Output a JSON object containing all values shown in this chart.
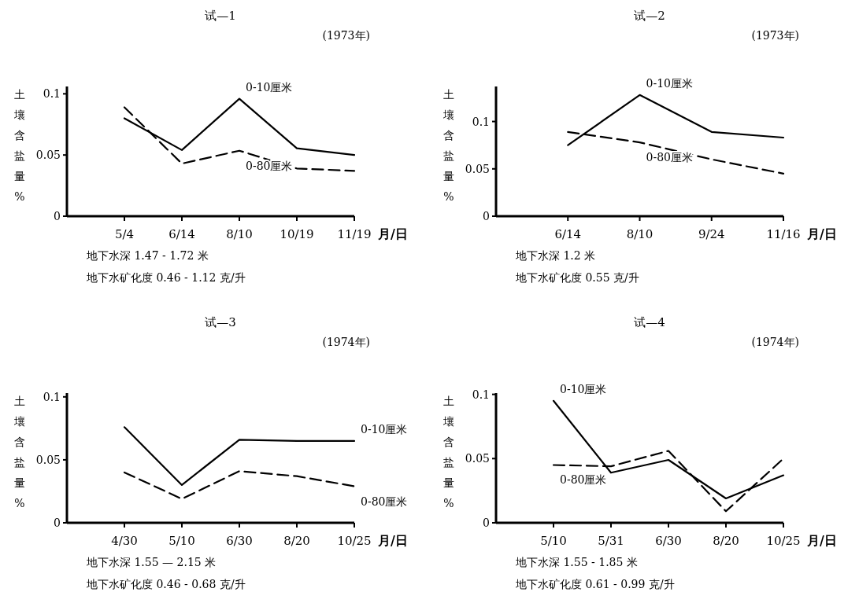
{
  "chart_data": [
    {
      "type": "line",
      "title": "试—1",
      "subtitle": "(1973年)",
      "ylabel": "土壤含盐量%",
      "xlabel": "月/日",
      "categories": [
        "5/4",
        "6/14",
        "8/10",
        "10/19",
        "11/19"
      ],
      "ylim": [
        0,
        0.106
      ],
      "yticks": [
        0,
        0.05,
        0.1
      ],
      "grid": false,
      "series": [
        {
          "name": "0-10厘米",
          "color": "#000000",
          "line_style": "solid",
          "values": [
            0.08,
            0.054,
            0.096,
            0.0555,
            0.05
          ]
        },
        {
          "name": "0-80厘米",
          "color": "#000000",
          "line_style": "dashed",
          "values": [
            0.089,
            0.043,
            0.0535,
            0.039,
            0.037
          ]
        }
      ],
      "annotations": [
        "地下水深 1.47 - 1.72 米",
        "地下水矿化度 0.46 - 1.12 克/升"
      ]
    },
    {
      "type": "line",
      "title": "试—2",
      "subtitle": "(1973年)",
      "ylabel": "土壤含盐量%",
      "xlabel": "月/日",
      "categories": [
        "6/14",
        "8/10",
        "9/24",
        "11/16"
      ],
      "ylim": [
        0,
        0.137
      ],
      "yticks": [
        0,
        0.05,
        0.1
      ],
      "grid": false,
      "series": [
        {
          "name": "0-10厘米",
          "color": "#000000",
          "line_style": "solid",
          "values": [
            0.075,
            0.128,
            0.089,
            0.083
          ]
        },
        {
          "name": "0-80厘米",
          "color": "#000000",
          "line_style": "dashed",
          "values": [
            0.089,
            0.078,
            0.06,
            0.045
          ]
        }
      ],
      "annotations": [
        "地下水深 1.2 米",
        "地下水矿化度 0.55 克/升"
      ]
    },
    {
      "type": "line",
      "title": "试—3",
      "subtitle": "(1974年)",
      "ylabel": "土壤含盐量%",
      "xlabel": "月/日",
      "categories": [
        "4/30",
        "5/10",
        "6/30",
        "8/20",
        "10/25"
      ],
      "ylim": [
        0,
        0.103
      ],
      "yticks": [
        0,
        0.05,
        0.1
      ],
      "grid": false,
      "series": [
        {
          "name": "0-10厘米",
          "color": "#000000",
          "line_style": "solid",
          "values": [
            0.076,
            0.03,
            0.066,
            0.065,
            0.065
          ]
        },
        {
          "name": "0-80厘米",
          "color": "#000000",
          "line_style": "dashed",
          "values": [
            0.04,
            0.019,
            0.041,
            0.037,
            0.029
          ]
        }
      ],
      "annotations": [
        "地下水深 1.55 — 2.15 米",
        "地下水矿化度 0.46 - 0.68 克/升"
      ]
    },
    {
      "type": "line",
      "title": "试—4",
      "subtitle": "(1974年)",
      "ylabel": "土壤含盐量%",
      "xlabel": "月/日",
      "categories": [
        "5/10",
        "5/31",
        "6/30",
        "8/20",
        "10/25"
      ],
      "ylim": [
        0,
        0.101
      ],
      "yticks": [
        0,
        0.05,
        0.1
      ],
      "grid": false,
      "series": [
        {
          "name": "0-10厘米",
          "color": "#000000",
          "line_style": "solid",
          "values": [
            0.095,
            0.039,
            0.049,
            0.019,
            0.037
          ]
        },
        {
          "name": "0-80厘米",
          "color": "#000000",
          "line_style": "dashed",
          "values": [
            0.045,
            0.044,
            0.056,
            0.009,
            0.05
          ]
        }
      ],
      "annotations": [
        "地下水深 1.55 - 1.85 米",
        "地下水矿化度 0.61 - 0.99 克/升"
      ]
    }
  ]
}
